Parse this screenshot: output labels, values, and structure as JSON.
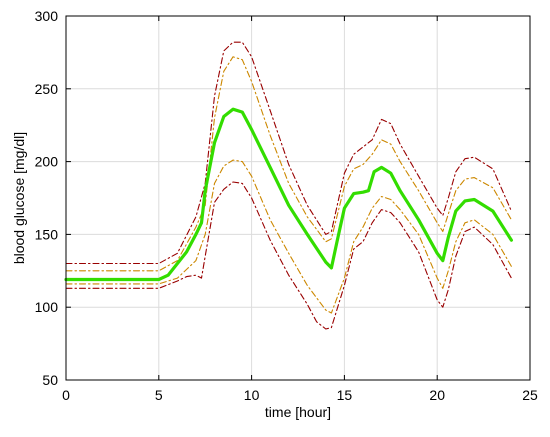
{
  "chart_data": {
    "type": "line",
    "title": "",
    "xlabel": "time [hour]",
    "ylabel": "blood glucose [mg/dl]",
    "xlim": [
      0,
      25
    ],
    "ylim": [
      50,
      300
    ],
    "xticks": [
      0,
      5,
      10,
      15,
      20,
      25
    ],
    "yticks": [
      50,
      100,
      150,
      200,
      250,
      300
    ],
    "grid": true,
    "legend": "none",
    "series": [
      {
        "color": "#990000",
        "style": "dash-dot",
        "role": "upper-outer",
        "points": [
          [
            0,
            130
          ],
          [
            5,
            130
          ],
          [
            6,
            137
          ],
          [
            7,
            162
          ],
          [
            7.5,
            185
          ],
          [
            8,
            245
          ],
          [
            8.5,
            276
          ],
          [
            9,
            282
          ],
          [
            9.5,
            282
          ],
          [
            10,
            272
          ],
          [
            11,
            235
          ],
          [
            12,
            198
          ],
          [
            13,
            170
          ],
          [
            14,
            150
          ],
          [
            14.3,
            152
          ],
          [
            15,
            192
          ],
          [
            15.5,
            205
          ],
          [
            16,
            210
          ],
          [
            16.5,
            215
          ],
          [
            17,
            229
          ],
          [
            17.5,
            226
          ],
          [
            18,
            212
          ],
          [
            19,
            190
          ],
          [
            20,
            168
          ],
          [
            20.3,
            163
          ],
          [
            20.6,
            175
          ],
          [
            21,
            193
          ],
          [
            21.5,
            202
          ],
          [
            22,
            203
          ],
          [
            23,
            195
          ],
          [
            24,
            166
          ]
        ]
      },
      {
        "color": "#cc8800",
        "style": "dash-dot",
        "role": "upper-inner",
        "points": [
          [
            0,
            125
          ],
          [
            5,
            125
          ],
          [
            6,
            132
          ],
          [
            7,
            155
          ],
          [
            7.5,
            170
          ],
          [
            8,
            230
          ],
          [
            8.5,
            262
          ],
          [
            9,
            272
          ],
          [
            9.5,
            270
          ],
          [
            10,
            255
          ],
          [
            11,
            218
          ],
          [
            12,
            185
          ],
          [
            13,
            162
          ],
          [
            14,
            145
          ],
          [
            14.3,
            147
          ],
          [
            15,
            183
          ],
          [
            15.5,
            195
          ],
          [
            16,
            198
          ],
          [
            16.5,
            205
          ],
          [
            17,
            215
          ],
          [
            17.5,
            212
          ],
          [
            18,
            200
          ],
          [
            19,
            180
          ],
          [
            20,
            158
          ],
          [
            20.3,
            152
          ],
          [
            20.6,
            164
          ],
          [
            21,
            180
          ],
          [
            21.5,
            188
          ],
          [
            22,
            189
          ],
          [
            23,
            182
          ],
          [
            24,
            160
          ]
        ]
      },
      {
        "color": "#33dd00",
        "style": "solid",
        "role": "median",
        "points": [
          [
            0,
            119
          ],
          [
            5,
            119
          ],
          [
            5.5,
            122
          ],
          [
            6,
            130
          ],
          [
            6.5,
            138
          ],
          [
            7,
            150
          ],
          [
            7.3,
            158
          ],
          [
            7.5,
            180
          ],
          [
            8,
            213
          ],
          [
            8.5,
            231
          ],
          [
            9,
            236
          ],
          [
            9.5,
            234
          ],
          [
            10,
            222
          ],
          [
            11,
            196
          ],
          [
            12,
            170
          ],
          [
            13,
            150
          ],
          [
            14,
            131
          ],
          [
            14.3,
            127
          ],
          [
            14.6,
            145
          ],
          [
            15,
            168
          ],
          [
            15.5,
            178
          ],
          [
            16,
            179
          ],
          [
            16.3,
            180
          ],
          [
            16.6,
            193
          ],
          [
            17,
            196
          ],
          [
            17.5,
            192
          ],
          [
            18,
            180
          ],
          [
            19,
            160
          ],
          [
            20,
            137
          ],
          [
            20.3,
            132
          ],
          [
            20.6,
            148
          ],
          [
            21,
            166
          ],
          [
            21.5,
            173
          ],
          [
            22,
            174
          ],
          [
            23,
            166
          ],
          [
            24,
            146
          ]
        ]
      },
      {
        "color": "#cc8800",
        "style": "dash-dot",
        "role": "lower-inner",
        "points": [
          [
            0,
            116
          ],
          [
            5,
            116
          ],
          [
            6,
            120
          ],
          [
            7,
            132
          ],
          [
            7.5,
            150
          ],
          [
            8,
            185
          ],
          [
            8.5,
            197
          ],
          [
            9,
            201
          ],
          [
            9.5,
            200
          ],
          [
            10,
            190
          ],
          [
            11,
            160
          ],
          [
            12,
            137
          ],
          [
            13,
            115
          ],
          [
            14,
            98
          ],
          [
            14.3,
            96
          ],
          [
            15,
            120
          ],
          [
            15.5,
            145
          ],
          [
            16,
            155
          ],
          [
            16.5,
            168
          ],
          [
            17,
            176
          ],
          [
            17.5,
            174
          ],
          [
            18,
            167
          ],
          [
            19,
            150
          ],
          [
            20,
            120
          ],
          [
            20.3,
            113
          ],
          [
            20.6,
            125
          ],
          [
            21,
            145
          ],
          [
            21.5,
            158
          ],
          [
            22,
            160
          ],
          [
            23,
            150
          ],
          [
            24,
            128
          ]
        ]
      },
      {
        "color": "#990000",
        "style": "dash-dot",
        "role": "lower-outer",
        "points": [
          [
            0,
            113
          ],
          [
            5,
            113
          ],
          [
            6,
            118
          ],
          [
            6.5,
            121
          ],
          [
            7,
            122
          ],
          [
            7.3,
            120
          ],
          [
            7.5,
            135
          ],
          [
            8,
            172
          ],
          [
            8.5,
            181
          ],
          [
            9,
            186
          ],
          [
            9.5,
            185
          ],
          [
            10,
            175
          ],
          [
            11,
            146
          ],
          [
            12,
            122
          ],
          [
            13,
            102
          ],
          [
            13.5,
            90
          ],
          [
            14,
            85
          ],
          [
            14.3,
            86
          ],
          [
            15,
            115
          ],
          [
            15.5,
            140
          ],
          [
            16,
            145
          ],
          [
            16.5,
            158
          ],
          [
            17,
            167
          ],
          [
            17.5,
            165
          ],
          [
            18,
            158
          ],
          [
            19,
            138
          ],
          [
            20,
            105
          ],
          [
            20.3,
            100
          ],
          [
            20.6,
            112
          ],
          [
            21,
            135
          ],
          [
            21.5,
            152
          ],
          [
            22,
            155
          ],
          [
            23,
            143
          ],
          [
            24,
            120
          ]
        ]
      }
    ]
  }
}
